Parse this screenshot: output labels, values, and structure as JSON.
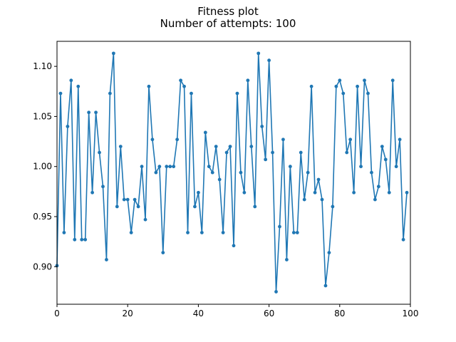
{
  "chart_data": {
    "type": "line",
    "title": "Fitness plot",
    "subtitle": "Number of attempts: 100",
    "xlabel": "",
    "ylabel": "",
    "xlim": [
      0,
      100
    ],
    "ylim": [
      0.8625,
      1.125
    ],
    "grid": false,
    "x_ticks": [
      0,
      20,
      40,
      60,
      80,
      100
    ],
    "y_ticks": [
      0.9,
      0.95,
      1.0,
      1.05,
      1.1
    ],
    "x_tick_labels": [
      "0",
      "20",
      "40",
      "60",
      "80",
      "100"
    ],
    "y_tick_labels": [
      "0.90",
      "0.95",
      "1.00",
      "1.05",
      "1.10"
    ],
    "line_color": "#1f77b4",
    "series": [
      {
        "x": [
          0,
          1,
          2,
          3,
          4,
          5,
          6,
          7,
          8,
          9,
          10,
          11,
          12,
          13,
          14,
          15,
          16,
          17,
          18,
          19,
          20,
          21,
          22,
          23,
          24,
          25,
          26,
          27,
          28,
          29,
          30,
          31,
          32,
          33,
          34,
          35,
          36,
          37,
          38,
          39,
          40,
          41,
          42,
          43,
          44,
          45,
          46,
          47,
          48,
          49,
          50,
          51,
          52,
          53,
          54,
          55,
          56,
          57,
          58,
          59,
          60,
          61,
          62,
          63,
          64,
          65,
          66,
          67,
          68,
          69,
          70,
          71,
          72,
          73,
          74,
          75,
          76,
          77,
          78,
          79,
          80,
          81,
          82,
          83,
          84,
          85,
          86,
          87,
          88,
          89,
          90,
          91,
          92,
          93,
          94,
          95,
          96,
          97,
          98,
          99
        ],
        "values": [
          0.901,
          1.073,
          0.934,
          1.04,
          1.086,
          0.927,
          1.08,
          0.927,
          0.927,
          1.054,
          0.974,
          1.054,
          1.014,
          0.98,
          0.907,
          1.073,
          1.113,
          0.96,
          1.02,
          0.967,
          0.967,
          0.934,
          0.967,
          0.96,
          1.0,
          0.947,
          1.08,
          1.027,
          0.994,
          1.0,
          0.914,
          1.0,
          1.0,
          1.0,
          1.027,
          1.086,
          1.08,
          0.934,
          1.073,
          0.96,
          0.974,
          0.934,
          1.034,
          1.0,
          0.994,
          1.02,
          0.987,
          0.934,
          1.014,
          1.02,
          0.921,
          1.073,
          0.994,
          0.974,
          1.086,
          1.02,
          0.96,
          1.113,
          1.04,
          1.007,
          1.106,
          1.014,
          0.875,
          0.94,
          1.027,
          0.907,
          1.0,
          0.934,
          0.934,
          1.014,
          0.967,
          0.994,
          1.08,
          0.974,
          0.987,
          0.967,
          0.881,
          0.914,
          0.96,
          1.08,
          1.086,
          1.073,
          1.014,
          1.027,
          0.974,
          1.08,
          1.0,
          1.086,
          1.073,
          0.994,
          0.967,
          0.98,
          1.02,
          1.007,
          0.974,
          1.086,
          1.0,
          1.027,
          0.927,
          0.974
        ]
      }
    ]
  }
}
